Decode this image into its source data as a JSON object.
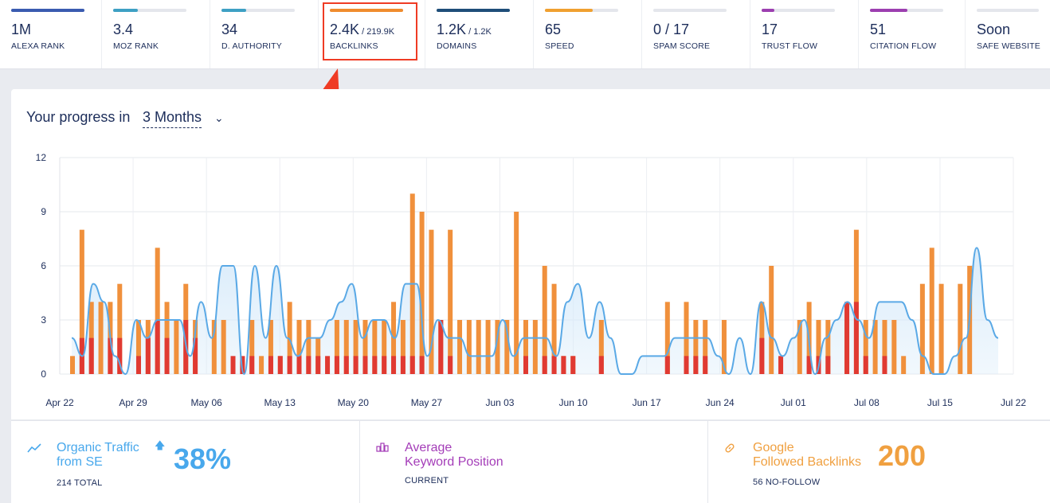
{
  "metrics": [
    {
      "value": "1M",
      "sub": "",
      "label": "ALEXA RANK",
      "color": "#3a5bb0",
      "fill": 1.0
    },
    {
      "value": "3.4",
      "sub": "",
      "label": "MOZ RANK",
      "color": "#3ea0c4",
      "fill": 0.34
    },
    {
      "value": "34",
      "sub": "",
      "label": "D. AUTHORITY",
      "color": "#3ea0c4",
      "fill": 0.34
    },
    {
      "value": "2.4K",
      "sub": "/ 219.9K",
      "label": "BACKLINKS",
      "color": "#f08c2e",
      "fill": 1.0
    },
    {
      "value": "1.2K",
      "sub": "/ 1.2K",
      "label": "DOMAINS",
      "color": "#1f4e79",
      "fill": 1.0
    },
    {
      "value": "65",
      "sub": "",
      "label": "SPEED",
      "color": "#f0a030",
      "fill": 0.65
    },
    {
      "value": "0 / 17",
      "sub": "",
      "label": "SPAM SCORE",
      "color": "#c8ccd6",
      "fill": 0.0
    },
    {
      "value": "17",
      "sub": "",
      "label": "TRUST FLOW",
      "color": "#9c3fb0",
      "fill": 0.17
    },
    {
      "value": "51",
      "sub": "",
      "label": "CITATION FLOW",
      "color": "#9c3fb0",
      "fill": 0.51
    },
    {
      "value": "Soon",
      "sub": "",
      "label": "SAFE WEBSITE",
      "color": "#c8ccd6",
      "fill": 0.0
    }
  ],
  "progress": {
    "title": "Your progress in",
    "range": "3 Months",
    "chevron": "chevron-down-icon"
  },
  "chart_data": {
    "type": "bar",
    "y_ticks": [
      "0",
      "3",
      "6",
      "9",
      "12"
    ],
    "ylim": [
      0,
      12
    ],
    "x_ticks": [
      "Apr 22",
      "Apr 29",
      "May 06",
      "May 13",
      "May 20",
      "May 27",
      "Jun 03",
      "Jun 10",
      "Jun 17",
      "Jun 24",
      "Jul 01",
      "Jul 08",
      "Jul 15",
      "Jul 22"
    ],
    "colors": {
      "orange": "#f0903c",
      "red": "#e03a32",
      "line": "#5aa9e6",
      "area": "#d8ebfa"
    },
    "series": [
      {
        "values": [
          1,
          8,
          4,
          4,
          4,
          5,
          0,
          3,
          3,
          7,
          4,
          3,
          5,
          3,
          0,
          3,
          3,
          0,
          0,
          3,
          1,
          3,
          1,
          4,
          3,
          3,
          2,
          0,
          3,
          3,
          3,
          3,
          3,
          3,
          4,
          3,
          10,
          9,
          8,
          3,
          8,
          3,
          3,
          3,
          3,
          3,
          3,
          9,
          3,
          3,
          6,
          5,
          1,
          1,
          0,
          0,
          3,
          0,
          0,
          0,
          0,
          0,
          0,
          4,
          0,
          4,
          3,
          3,
          0,
          3,
          0,
          0,
          0,
          4,
          6,
          0,
          0,
          3,
          4,
          3,
          3,
          0,
          3,
          8,
          3,
          3,
          3,
          3,
          1,
          0,
          5,
          7,
          5,
          0,
          5,
          6,
          0
        ]
      },
      {
        "values": [
          0,
          2,
          2,
          0,
          2,
          2,
          0,
          1,
          2,
          3,
          2,
          0,
          3,
          2,
          0,
          0,
          0,
          1,
          1,
          1,
          0,
          1,
          1,
          1,
          1,
          1,
          1,
          1,
          1,
          1,
          1,
          1,
          1,
          1,
          1,
          1,
          1,
          1,
          0,
          3,
          1,
          0,
          0,
          0,
          0,
          0,
          0,
          0,
          1,
          0,
          1,
          1,
          1,
          1,
          0,
          0,
          1,
          0,
          0,
          0,
          0,
          0,
          0,
          1,
          0,
          1,
          1,
          1,
          0,
          0,
          0,
          0,
          0,
          2,
          0,
          1,
          0,
          0,
          1,
          1,
          1,
          0,
          4,
          4,
          1,
          0,
          1,
          0,
          0,
          0,
          0,
          0,
          0,
          0,
          0,
          0,
          0
        ]
      },
      {
        "values": [
          2,
          1,
          5,
          4,
          1,
          0,
          3,
          2,
          3,
          3,
          3,
          1,
          4,
          2,
          6,
          6,
          0,
          6,
          2,
          6,
          2,
          1,
          2,
          2,
          3,
          4,
          5,
          2,
          3,
          3,
          2,
          5,
          5,
          1,
          3,
          2,
          2,
          1,
          1,
          1,
          3,
          1,
          2,
          2,
          2,
          1,
          4,
          5,
          2,
          4,
          2,
          0,
          0,
          1,
          1,
          1,
          2,
          2,
          2,
          2,
          1,
          0,
          2,
          0,
          4,
          2,
          1,
          2,
          3,
          0,
          2,
          3,
          4,
          3,
          2,
          4,
          4,
          4,
          3,
          1,
          0,
          0,
          1,
          2,
          7,
          3,
          2
        ]
      }
    ]
  },
  "bottom": [
    {
      "icon": "trend-line-icon",
      "title1": "Organic Traffic",
      "title2": "from SE",
      "big": "38%",
      "trend_icon": "arrow-up-icon",
      "sub": "214 TOTAL",
      "color": "#48a8ec"
    },
    {
      "icon": "podium-icon",
      "title1": "Average",
      "title2": "Keyword Position",
      "big": "",
      "sub": "CURRENT",
      "color": "#a43db8"
    },
    {
      "icon": "link-icon",
      "title1": "Google",
      "title2": "Followed Backlinks",
      "big": "200",
      "sub": "56 NO-FOLLOW",
      "color": "#f0a040"
    }
  ]
}
